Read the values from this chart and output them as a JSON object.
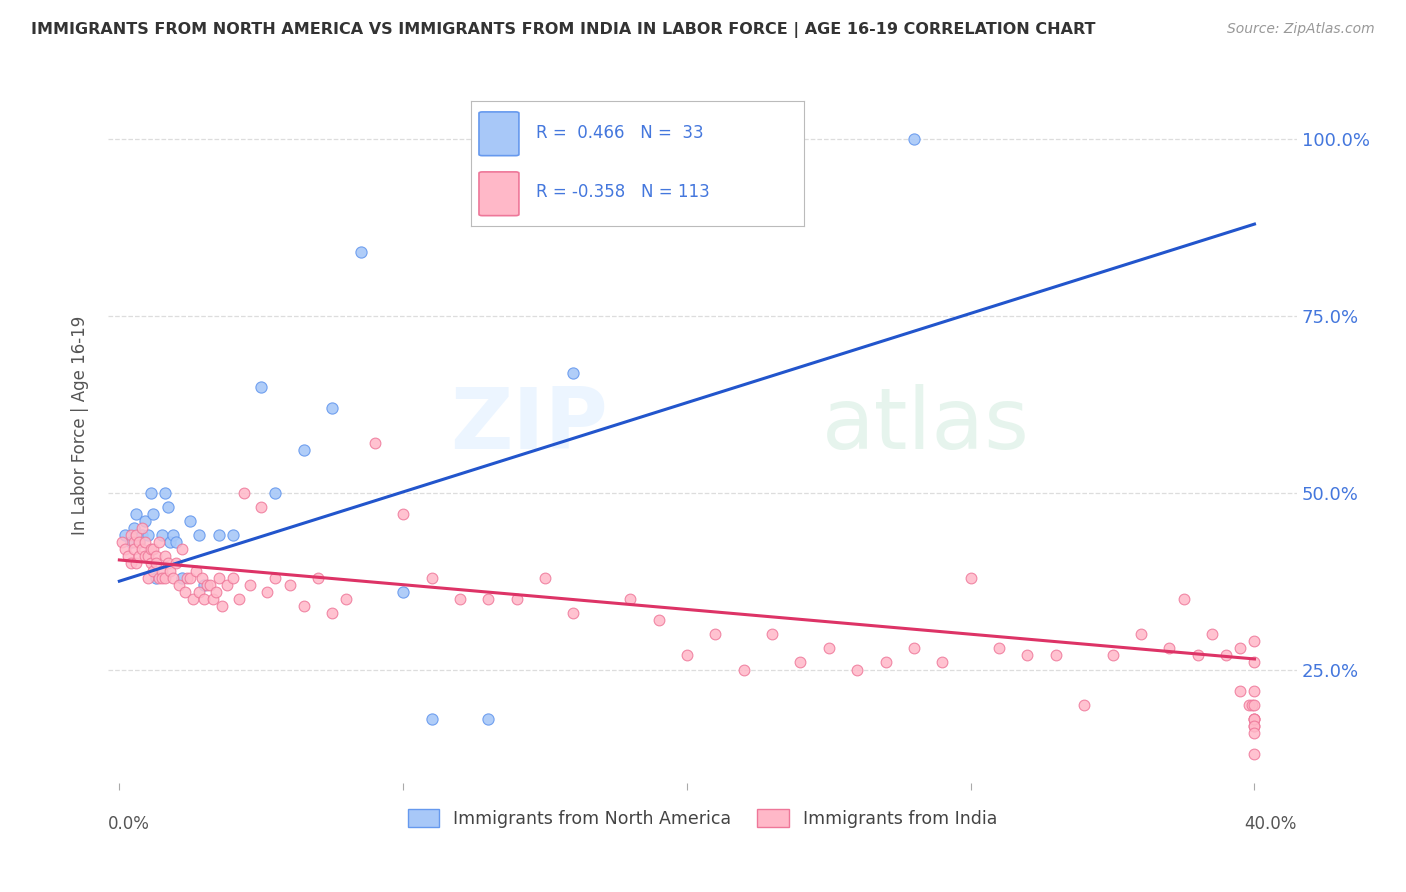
{
  "title": "IMMIGRANTS FROM NORTH AMERICA VS IMMIGRANTS FROM INDIA IN LABOR FORCE | AGE 16-19 CORRELATION CHART",
  "source": "Source: ZipAtlas.com",
  "ylabel": "In Labor Force | Age 16-19",
  "yticks": [
    0.25,
    0.5,
    0.75,
    1.0
  ],
  "ytick_labels": [
    "25.0%",
    "50.0%",
    "75.0%",
    "100.0%"
  ],
  "xlim_min": -0.004,
  "xlim_max": 0.415,
  "ylim_min": 0.09,
  "ylim_max": 1.1,
  "blue_color_fill": "#A8C8F8",
  "blue_color_edge": "#6699EE",
  "pink_color_fill": "#FFB8C8",
  "pink_color_edge": "#EE7799",
  "blue_line_color": "#2255CC",
  "pink_line_color": "#DD3366",
  "legend_text_color": "#4477DD",
  "axis_label_color": "#555555",
  "right_tick_color": "#4477DD",
  "grid_color": "#DDDDDD",
  "title_color": "#333333",
  "source_color": "#999999",
  "blue_line_x0": 0.0,
  "blue_line_y0": 0.375,
  "blue_line_x1": 0.4,
  "blue_line_y1": 0.88,
  "pink_line_x0": 0.0,
  "pink_line_y0": 0.405,
  "pink_line_x1": 0.4,
  "pink_line_y1": 0.265,
  "blue_x": [
    0.002,
    0.004,
    0.005,
    0.006,
    0.007,
    0.008,
    0.009,
    0.01,
    0.011,
    0.012,
    0.013,
    0.015,
    0.016,
    0.017,
    0.018,
    0.019,
    0.02,
    0.022,
    0.025,
    0.028,
    0.03,
    0.035,
    0.04,
    0.05,
    0.055,
    0.065,
    0.075,
    0.085,
    0.1,
    0.11,
    0.13,
    0.16,
    0.28
  ],
  "blue_y": [
    0.44,
    0.43,
    0.45,
    0.47,
    0.43,
    0.44,
    0.46,
    0.44,
    0.5,
    0.47,
    0.38,
    0.44,
    0.5,
    0.48,
    0.43,
    0.44,
    0.43,
    0.38,
    0.46,
    0.44,
    0.37,
    0.44,
    0.44,
    0.65,
    0.5,
    0.56,
    0.62,
    0.84,
    0.36,
    0.18,
    0.18,
    0.67,
    1.0
  ],
  "pink_x": [
    0.001,
    0.002,
    0.003,
    0.004,
    0.004,
    0.005,
    0.005,
    0.006,
    0.006,
    0.007,
    0.007,
    0.008,
    0.008,
    0.009,
    0.009,
    0.01,
    0.01,
    0.011,
    0.011,
    0.012,
    0.012,
    0.013,
    0.013,
    0.014,
    0.014,
    0.015,
    0.015,
    0.016,
    0.016,
    0.017,
    0.018,
    0.019,
    0.02,
    0.021,
    0.022,
    0.023,
    0.024,
    0.025,
    0.026,
    0.027,
    0.028,
    0.029,
    0.03,
    0.031,
    0.032,
    0.033,
    0.034,
    0.035,
    0.036,
    0.038,
    0.04,
    0.042,
    0.044,
    0.046,
    0.05,
    0.052,
    0.055,
    0.06,
    0.065,
    0.07,
    0.075,
    0.08,
    0.09,
    0.1,
    0.11,
    0.12,
    0.13,
    0.14,
    0.15,
    0.16,
    0.18,
    0.19,
    0.2,
    0.21,
    0.22,
    0.23,
    0.24,
    0.25,
    0.26,
    0.27,
    0.28,
    0.29,
    0.3,
    0.31,
    0.32,
    0.33,
    0.34,
    0.35,
    0.36,
    0.37,
    0.375,
    0.38,
    0.385,
    0.39,
    0.395,
    0.395,
    0.398,
    0.399,
    0.4,
    0.4,
    0.4,
    0.4,
    0.4,
    0.4,
    0.4,
    0.4,
    0.4,
    0.4,
    0.4
  ],
  "pink_y": [
    0.43,
    0.42,
    0.41,
    0.44,
    0.4,
    0.43,
    0.42,
    0.44,
    0.4,
    0.43,
    0.41,
    0.42,
    0.45,
    0.41,
    0.43,
    0.41,
    0.38,
    0.4,
    0.42,
    0.39,
    0.42,
    0.41,
    0.4,
    0.43,
    0.38,
    0.39,
    0.38,
    0.41,
    0.38,
    0.4,
    0.39,
    0.38,
    0.4,
    0.37,
    0.42,
    0.36,
    0.38,
    0.38,
    0.35,
    0.39,
    0.36,
    0.38,
    0.35,
    0.37,
    0.37,
    0.35,
    0.36,
    0.38,
    0.34,
    0.37,
    0.38,
    0.35,
    0.5,
    0.37,
    0.48,
    0.36,
    0.38,
    0.37,
    0.34,
    0.38,
    0.33,
    0.35,
    0.57,
    0.47,
    0.38,
    0.35,
    0.35,
    0.35,
    0.38,
    0.33,
    0.35,
    0.32,
    0.27,
    0.3,
    0.25,
    0.3,
    0.26,
    0.28,
    0.25,
    0.26,
    0.28,
    0.26,
    0.38,
    0.28,
    0.27,
    0.27,
    0.2,
    0.27,
    0.3,
    0.28,
    0.35,
    0.27,
    0.3,
    0.27,
    0.22,
    0.28,
    0.2,
    0.2,
    0.22,
    0.18,
    0.2,
    0.18,
    0.17,
    0.18,
    0.13,
    0.17,
    0.16,
    0.29,
    0.26
  ]
}
